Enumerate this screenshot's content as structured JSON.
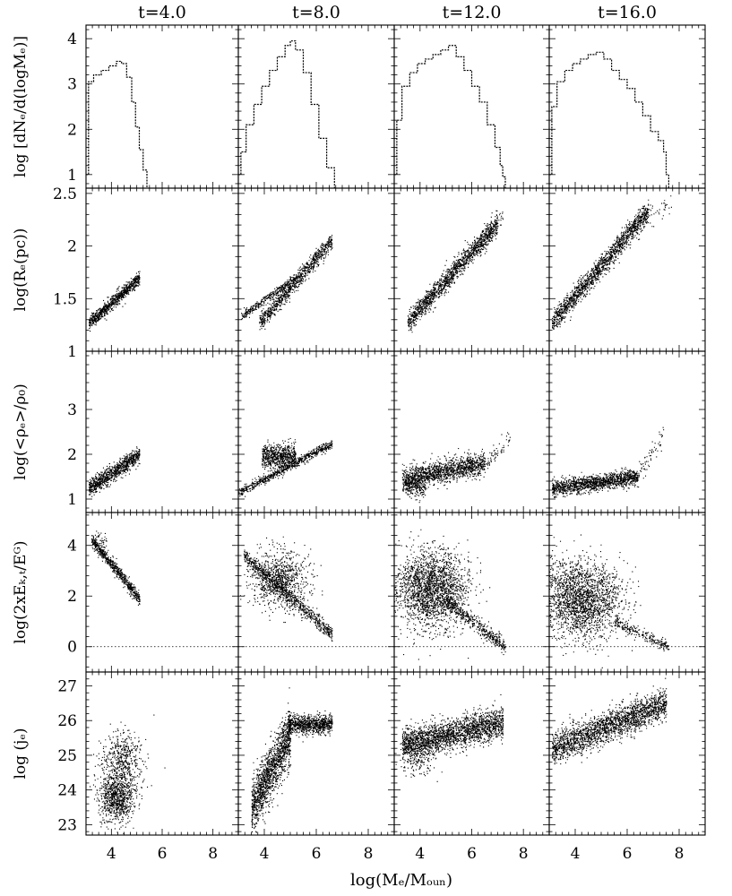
{
  "figure": {
    "column_titles": [
      "t=4.0",
      "t=8.0",
      "t=12.0",
      "t=16.0"
    ],
    "row_ylabels": [
      "log [dNₑ/d(logMₑ)]",
      "log(Rₑ(pc))",
      "log(<ρₑ>/ρ₀)",
      "log(2xEₖ,ₜ/Eᴳ)",
      "log (jₑ)"
    ],
    "xlabel": "log(Mₑ/Mₒᵤₙ)"
  },
  "chart_data": [
    {
      "type": "line",
      "row": 0,
      "ylabel": "log [dNₑ/d(logMₑ)]",
      "xlim": [
        3,
        9
      ],
      "ylim": [
        0.7,
        4.3
      ],
      "xticks": [
        4,
        6,
        8
      ],
      "yticks": [
        1,
        2,
        3,
        4
      ],
      "step": true,
      "series": [
        {
          "panel": "t=4.0",
          "x": [
            3.0,
            3.1,
            3.3,
            3.6,
            3.9,
            4.2,
            4.4,
            4.6,
            4.8,
            4.95,
            5.1,
            5.25,
            5.4
          ],
          "y": [
            1.0,
            3.05,
            3.2,
            3.3,
            3.4,
            3.5,
            3.45,
            3.15,
            2.6,
            2.05,
            1.55,
            1.1,
            0.7
          ]
        },
        {
          "panel": "t=8.0",
          "x": [
            3.0,
            3.1,
            3.3,
            3.6,
            3.9,
            4.2,
            4.5,
            4.8,
            5.0,
            5.2,
            5.5,
            5.8,
            6.1,
            6.4,
            6.7
          ],
          "y": [
            1.0,
            1.5,
            2.1,
            2.55,
            2.95,
            3.3,
            3.6,
            3.85,
            3.95,
            3.75,
            3.25,
            2.55,
            1.8,
            1.15,
            0.7
          ]
        },
        {
          "panel": "t=12.0",
          "x": [
            3.0,
            3.1,
            3.3,
            3.6,
            3.9,
            4.2,
            4.5,
            4.8,
            5.1,
            5.4,
            5.7,
            6.0,
            6.3,
            6.6,
            6.9,
            7.1,
            7.2,
            7.3
          ],
          "y": [
            1.0,
            2.2,
            2.95,
            3.25,
            3.45,
            3.55,
            3.65,
            3.75,
            3.85,
            3.6,
            3.3,
            2.95,
            2.6,
            2.1,
            1.6,
            1.2,
            0.95,
            0.7
          ]
        },
        {
          "panel": "t=16.0",
          "x": [
            3.0,
            3.1,
            3.3,
            3.6,
            3.9,
            4.2,
            4.5,
            4.8,
            5.1,
            5.4,
            5.7,
            6.0,
            6.3,
            6.6,
            6.9,
            7.2,
            7.4,
            7.5,
            7.6
          ],
          "y": [
            1.0,
            2.5,
            3.05,
            3.3,
            3.45,
            3.55,
            3.65,
            3.7,
            3.55,
            3.3,
            3.1,
            2.9,
            2.6,
            2.3,
            1.95,
            1.75,
            1.5,
            1.0,
            0.7
          ]
        }
      ]
    },
    {
      "type": "scatter",
      "row": 1,
      "ylabel": "log(Rₑ(pc))",
      "xlim": [
        3,
        9
      ],
      "ylim": [
        1.0,
        2.55
      ],
      "xticks": [
        4,
        6,
        8
      ],
      "yticks": [
        1,
        1.5,
        2,
        2.5
      ],
      "panels": [
        {
          "panel": "t=4.0",
          "bands": [
            {
              "x": [
                3.1,
                5.1
              ],
              "y": [
                1.27,
                1.7
              ],
              "spread": 0.03,
              "n": 900
            }
          ]
        },
        {
          "panel": "t=8.0",
          "bands": [
            {
              "x": [
                3.1,
                5.3
              ],
              "y": [
                1.33,
                1.72
              ],
              "spread": 0.02,
              "n": 350
            },
            {
              "x": [
                3.8,
                6.6
              ],
              "y": [
                1.27,
                2.06
              ],
              "spread": 0.04,
              "n": 900
            }
          ]
        },
        {
          "panel": "t=12.0",
          "bands": [
            {
              "x": [
                3.5,
                7.0
              ],
              "y": [
                1.27,
                2.22
              ],
              "spread": 0.05,
              "n": 1500
            },
            {
              "x": [
                6.6,
                7.2
              ],
              "y": [
                2.1,
                2.28
              ],
              "spread": 0.04,
              "n": 40
            }
          ]
        },
        {
          "panel": "t=16.0",
          "bands": [
            {
              "x": [
                3.1,
                6.8
              ],
              "y": [
                1.27,
                2.33
              ],
              "spread": 0.05,
              "n": 1600
            },
            {
              "x": [
                6.6,
                7.7
              ],
              "y": [
                2.28,
                2.38
              ],
              "spread": 0.05,
              "n": 40
            }
          ]
        }
      ]
    },
    {
      "type": "scatter",
      "row": 2,
      "ylabel": "log(<ρₑ>/ρ₀)",
      "xlim": [
        3,
        9
      ],
      "ylim": [
        0.7,
        4.3
      ],
      "xticks": [
        4,
        6,
        8
      ],
      "yticks": [
        1,
        2,
        3
      ],
      "panels": [
        {
          "panel": "t=4.0",
          "bands": [
            {
              "x": [
                3.1,
                5.1
              ],
              "y": [
                1.25,
                2.0
              ],
              "spread": 0.09,
              "n": 900
            }
          ]
        },
        {
          "panel": "t=8.0",
          "bands": [
            {
              "x": [
                3.0,
                6.6
              ],
              "y": [
                1.15,
                2.25
              ],
              "spread": 0.05,
              "n": 700
            },
            {
              "x": [
                3.9,
                5.2
              ],
              "y": [
                1.95,
                1.95
              ],
              "spread": 0.14,
              "n": 700
            }
          ]
        },
        {
          "panel": "t=12.0",
          "bands": [
            {
              "x": [
                3.3,
                6.5
              ],
              "y": [
                1.45,
                1.8
              ],
              "spread": 0.12,
              "n": 1400
            },
            {
              "x": [
                3.4,
                4.2
              ],
              "y": [
                1.3,
                1.3
              ],
              "spread": 0.12,
              "n": 200
            },
            {
              "x": [
                6.5,
                7.5
              ],
              "y": [
                1.75,
                2.4
              ],
              "spread": 0.1,
              "n": 60
            }
          ]
        },
        {
          "panel": "t=16.0",
          "bands": [
            {
              "x": [
                3.1,
                6.4
              ],
              "y": [
                1.25,
                1.5
              ],
              "spread": 0.09,
              "n": 1400
            },
            {
              "x": [
                6.4,
                7.4
              ],
              "y": [
                1.5,
                2.45
              ],
              "spread": 0.12,
              "n": 60
            }
          ]
        }
      ]
    },
    {
      "type": "scatter",
      "row": 3,
      "ylabel": "log(2xEₖ,ₜ/Eᴳ)",
      "xlim": [
        3,
        9
      ],
      "ylim": [
        -1.0,
        5.3
      ],
      "xticks": [
        4,
        6,
        8
      ],
      "yticks": [
        0,
        2,
        4
      ],
      "zero_line": true,
      "panels": [
        {
          "panel": "t=4.0",
          "bands": [
            {
              "x": [
                3.2,
                5.1
              ],
              "y": [
                4.25,
                1.9
              ],
              "spread": 0.12,
              "n": 700
            },
            {
              "x": [
                3.3,
                3.8
              ],
              "y": [
                4.3,
                3.9
              ],
              "spread": 0.25,
              "n": 60
            }
          ]
        },
        {
          "panel": "t=8.0",
          "bands": [
            {
              "x": [
                3.2,
                6.6
              ],
              "y": [
                3.6,
                0.5
              ],
              "spread": 0.15,
              "n": 800
            }
          ],
          "clouds": [
            {
              "cx": 4.6,
              "cy": 2.7,
              "sx": 0.55,
              "sy": 0.55,
              "n": 900
            }
          ]
        },
        {
          "panel": "t=12.0",
          "bands": [
            {
              "x": [
                5.0,
                7.3
              ],
              "y": [
                1.8,
                0.0
              ],
              "spread": 0.15,
              "n": 500
            }
          ],
          "clouds": [
            {
              "cx": 4.4,
              "cy": 2.3,
              "sx": 0.7,
              "sy": 0.75,
              "n": 2200
            }
          ]
        },
        {
          "panel": "t=16.0",
          "bands": [
            {
              "x": [
                5.5,
                7.6
              ],
              "y": [
                1.0,
                0.0
              ],
              "spread": 0.1,
              "n": 250
            }
          ],
          "clouds": [
            {
              "cx": 4.2,
              "cy": 1.9,
              "sx": 0.8,
              "sy": 0.75,
              "n": 2200
            }
          ]
        }
      ]
    },
    {
      "type": "scatter",
      "row": 4,
      "ylabel": "log (jₑ)",
      "xlim": [
        3,
        9
      ],
      "ylim": [
        22.7,
        27.4
      ],
      "xticks": [
        4,
        6,
        8
      ],
      "yticks": [
        23,
        24,
        25,
        26,
        27
      ],
      "panels": [
        {
          "panel": "t=4.0",
          "clouds": [
            {
              "cx": 4.2,
              "cy": 23.8,
              "sx": 0.35,
              "sy": 0.35,
              "n": 900
            },
            {
              "cx": 4.4,
              "cy": 24.9,
              "sx": 0.4,
              "sy": 0.4,
              "n": 500
            }
          ]
        },
        {
          "panel": "t=8.0",
          "bands": [
            {
              "x": [
                3.5,
                5.0
              ],
              "y": [
                23.5,
                25.6
              ],
              "spread": 0.4,
              "n": 1500
            },
            {
              "x": [
                4.9,
                6.6
              ],
              "y": [
                25.9,
                25.9
              ],
              "spread": 0.13,
              "n": 900
            }
          ]
        },
        {
          "panel": "t=12.0",
          "bands": [
            {
              "x": [
                3.3,
                7.2
              ],
              "y": [
                25.3,
                25.95
              ],
              "spread": 0.22,
              "n": 2200
            }
          ],
          "clouds": [
            {
              "cx": 3.9,
              "cy": 25.0,
              "sx": 0.4,
              "sy": 0.3,
              "n": 200
            }
          ]
        },
        {
          "panel": "t=16.0",
          "bands": [
            {
              "x": [
                3.1,
                7.5
              ],
              "y": [
                25.2,
                26.5
              ],
              "spread": 0.22,
              "n": 2200
            }
          ]
        }
      ]
    }
  ]
}
